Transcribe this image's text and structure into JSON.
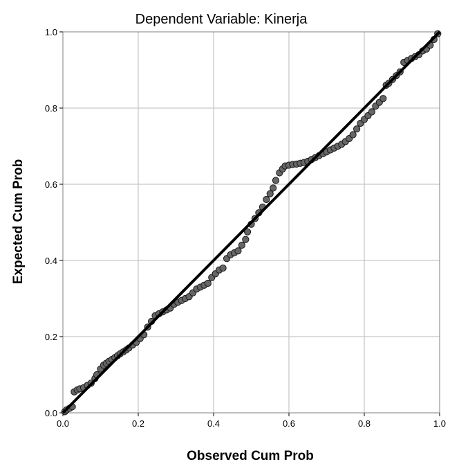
{
  "chart_data": {
    "type": "scatter",
    "title": "Dependent Variable: Kinerja",
    "xlabel": "Observed Cum Prob",
    "ylabel": "Expected Cum Prob",
    "xlim": [
      0.0,
      1.0
    ],
    "ylim": [
      0.0,
      1.0
    ],
    "x_ticks": [
      "0.0",
      "0.2",
      "0.4",
      "0.6",
      "0.8",
      "1.0"
    ],
    "y_ticks": [
      "0.0",
      "0.2",
      "0.4",
      "0.6",
      "0.8",
      "1.0"
    ],
    "grid": true,
    "reference_line": {
      "from": [
        0.0,
        0.0
      ],
      "to": [
        1.0,
        1.0
      ],
      "color": "#000000"
    },
    "marker_color": "#666666",
    "points": [
      [
        0.005,
        0.003
      ],
      [
        0.01,
        0.008
      ],
      [
        0.018,
        0.012
      ],
      [
        0.025,
        0.016
      ],
      [
        0.03,
        0.055
      ],
      [
        0.038,
        0.06
      ],
      [
        0.045,
        0.063
      ],
      [
        0.055,
        0.066
      ],
      [
        0.065,
        0.072
      ],
      [
        0.075,
        0.078
      ],
      [
        0.085,
        0.09
      ],
      [
        0.09,
        0.1
      ],
      [
        0.1,
        0.115
      ],
      [
        0.108,
        0.125
      ],
      [
        0.115,
        0.13
      ],
      [
        0.122,
        0.135
      ],
      [
        0.13,
        0.14
      ],
      [
        0.138,
        0.145
      ],
      [
        0.145,
        0.15
      ],
      [
        0.152,
        0.155
      ],
      [
        0.16,
        0.16
      ],
      [
        0.168,
        0.165
      ],
      [
        0.175,
        0.17
      ],
      [
        0.185,
        0.178
      ],
      [
        0.195,
        0.185
      ],
      [
        0.205,
        0.195
      ],
      [
        0.215,
        0.205
      ],
      [
        0.225,
        0.225
      ],
      [
        0.235,
        0.24
      ],
      [
        0.245,
        0.255
      ],
      [
        0.255,
        0.26
      ],
      [
        0.265,
        0.265
      ],
      [
        0.275,
        0.27
      ],
      [
        0.285,
        0.275
      ],
      [
        0.295,
        0.285
      ],
      [
        0.305,
        0.29
      ],
      [
        0.315,
        0.295
      ],
      [
        0.325,
        0.3
      ],
      [
        0.335,
        0.305
      ],
      [
        0.345,
        0.315
      ],
      [
        0.355,
        0.325
      ],
      [
        0.365,
        0.33
      ],
      [
        0.375,
        0.335
      ],
      [
        0.385,
        0.34
      ],
      [
        0.395,
        0.355
      ],
      [
        0.405,
        0.365
      ],
      [
        0.415,
        0.375
      ],
      [
        0.425,
        0.38
      ],
      [
        0.435,
        0.405
      ],
      [
        0.445,
        0.415
      ],
      [
        0.455,
        0.42
      ],
      [
        0.465,
        0.425
      ],
      [
        0.475,
        0.44
      ],
      [
        0.485,
        0.455
      ],
      [
        0.49,
        0.475
      ],
      [
        0.5,
        0.495
      ],
      [
        0.51,
        0.51
      ],
      [
        0.52,
        0.525
      ],
      [
        0.53,
        0.54
      ],
      [
        0.54,
        0.56
      ],
      [
        0.55,
        0.575
      ],
      [
        0.558,
        0.59
      ],
      [
        0.565,
        0.61
      ],
      [
        0.575,
        0.63
      ],
      [
        0.583,
        0.64
      ],
      [
        0.59,
        0.648
      ],
      [
        0.6,
        0.65
      ],
      [
        0.61,
        0.652
      ],
      [
        0.62,
        0.653
      ],
      [
        0.63,
        0.655
      ],
      [
        0.64,
        0.657
      ],
      [
        0.65,
        0.66
      ],
      [
        0.66,
        0.665
      ],
      [
        0.67,
        0.67
      ],
      [
        0.68,
        0.675
      ],
      [
        0.69,
        0.68
      ],
      [
        0.7,
        0.685
      ],
      [
        0.71,
        0.69
      ],
      [
        0.72,
        0.695
      ],
      [
        0.73,
        0.7
      ],
      [
        0.74,
        0.705
      ],
      [
        0.75,
        0.712
      ],
      [
        0.76,
        0.72
      ],
      [
        0.77,
        0.73
      ],
      [
        0.78,
        0.745
      ],
      [
        0.79,
        0.76
      ],
      [
        0.8,
        0.77
      ],
      [
        0.81,
        0.78
      ],
      [
        0.82,
        0.79
      ],
      [
        0.83,
        0.805
      ],
      [
        0.84,
        0.815
      ],
      [
        0.85,
        0.825
      ],
      [
        0.858,
        0.86
      ],
      [
        0.865,
        0.865
      ],
      [
        0.875,
        0.875
      ],
      [
        0.885,
        0.885
      ],
      [
        0.895,
        0.895
      ],
      [
        0.905,
        0.92
      ],
      [
        0.915,
        0.925
      ],
      [
        0.925,
        0.93
      ],
      [
        0.935,
        0.935
      ],
      [
        0.945,
        0.94
      ],
      [
        0.955,
        0.95
      ],
      [
        0.965,
        0.955
      ],
      [
        0.975,
        0.965
      ],
      [
        0.985,
        0.98
      ],
      [
        0.995,
        0.995
      ]
    ]
  }
}
